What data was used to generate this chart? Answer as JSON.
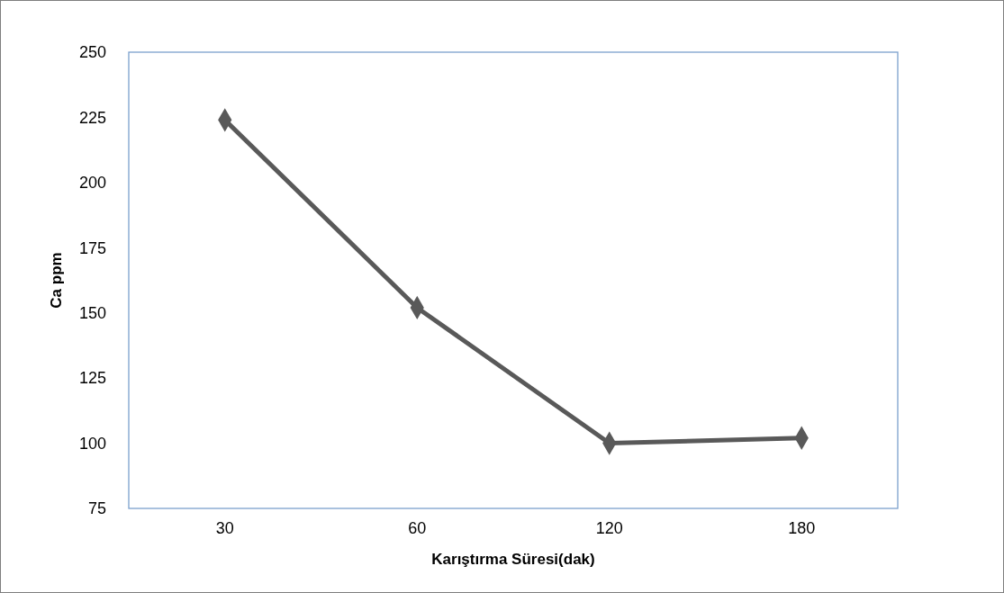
{
  "chart_data": {
    "type": "line",
    "xlabel": "Karıştırma Süresi(dak)",
    "ylabel": "Ca ppm",
    "categories": [
      "30",
      "60",
      "120",
      "180"
    ],
    "series": [
      {
        "color": "#595959",
        "values": [
          224,
          152,
          100,
          102
        ]
      }
    ],
    "ylim": [
      75,
      250
    ],
    "yticks": [
      75,
      100,
      125,
      150,
      175,
      200,
      225,
      250
    ],
    "grid": false,
    "marker": "diamond",
    "line_style": "solid"
  }
}
